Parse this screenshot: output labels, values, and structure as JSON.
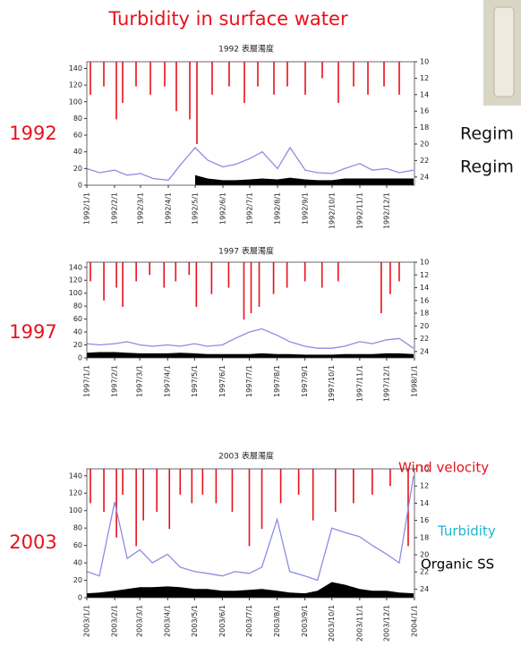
{
  "slide": {
    "title": "Turbidity in surface water",
    "years": [
      "1992",
      "1997",
      "2003"
    ],
    "side_text": [
      "Regim",
      "Regim"
    ]
  },
  "chart_data": [
    {
      "type": "line",
      "title": "1992 表層濁度",
      "xlim": [
        "1992/1/1",
        "1993/1/1"
      ],
      "xticks": [
        "1992/1/1",
        "1992/2/1",
        "1992/3/1",
        "1992/4/1",
        "1992/5/1",
        "1992/6/1",
        "1992/7/1",
        "1992/8/1",
        "1992/9/1",
        "1992/10/1",
        "1992/11/1",
        "1992/12/1"
      ],
      "ylim": [
        0,
        148
      ],
      "yticks": [
        0,
        20,
        40,
        60,
        80,
        100,
        120,
        140
      ],
      "y2lim": [
        25,
        10
      ],
      "y2ticks": [
        10,
        12,
        14,
        16,
        18,
        20,
        22,
        24
      ],
      "x": [
        "1992/1/1",
        "1992/1/15",
        "1992/2/1",
        "1992/2/15",
        "1992/3/1",
        "1992/3/15",
        "1992/4/1",
        "1992/4/15",
        "1992/5/1",
        "1992/5/15",
        "1992/6/1",
        "1992/6/15",
        "1992/7/1",
        "1992/7/15",
        "1992/8/1",
        "1992/8/15",
        "1992/9/1",
        "1992/9/15",
        "1992/10/1",
        "1992/10/15",
        "1992/11/1",
        "1992/11/15",
        "1992/12/1",
        "1992/12/15",
        "1992/12/31"
      ],
      "series": [
        {
          "type": "bar",
          "axis": "y2",
          "color": "#e8101c",
          "x": [
            "1992/1/5",
            "1992/1/20",
            "1992/2/3",
            "1992/2/10",
            "1992/2/25",
            "1992/3/12",
            "1992/3/28",
            "1992/4/10",
            "1992/4/25",
            "1992/5/3",
            "1992/5/20",
            "1992/6/8",
            "1992/6/25",
            "1992/7/10",
            "1992/7/28",
            "1992/8/12",
            "1992/9/1",
            "1992/9/20",
            "1992/10/8",
            "1992/10/25",
            "1992/11/10",
            "1992/11/28",
            "1992/12/15"
          ],
          "values": [
            14,
            13,
            17,
            15,
            13,
            14,
            13,
            16,
            17,
            20,
            14,
            13,
            15,
            13,
            14,
            13,
            14,
            12,
            15,
            13,
            14,
            13,
            14
          ]
        },
        {
          "color": "#8c8ce6",
          "values": [
            20,
            15,
            18,
            12,
            14,
            8,
            6,
            25,
            45,
            30,
            22,
            25,
            32,
            40,
            20,
            45,
            18,
            15,
            14,
            20,
            26,
            18,
            20,
            15,
            18
          ]
        },
        {
          "type": "area",
          "color": "#000000",
          "values": [
            null,
            null,
            null,
            null,
            null,
            null,
            null,
            null,
            12,
            8,
            6,
            6,
            7,
            8,
            7,
            9,
            7,
            6,
            6,
            8,
            8,
            8,
            8,
            8,
            8
          ]
        }
      ]
    },
    {
      "type": "line",
      "title": "1997 表層濁度",
      "xlim": [
        "1997/1/1",
        "1998/1/1"
      ],
      "xticks": [
        "1997/1/1",
        "1997/2/1",
        "1997/3/1",
        "1997/4/1",
        "1997/5/1",
        "1997/6/1",
        "1997/7/1",
        "1997/8/1",
        "1997/9/1",
        "1997/10/1",
        "1997/11/1",
        "1997/12/1",
        "1998/1/1"
      ],
      "ylim": [
        0,
        148
      ],
      "yticks": [
        0,
        20,
        40,
        60,
        80,
        100,
        120,
        140
      ],
      "y2lim": [
        25,
        10
      ],
      "y2ticks": [
        10,
        12,
        14,
        16,
        18,
        20,
        22,
        24
      ],
      "x": [
        "1997/1/1",
        "1997/1/15",
        "1997/2/1",
        "1997/2/15",
        "1997/3/1",
        "1997/3/15",
        "1997/4/1",
        "1997/4/15",
        "1997/5/1",
        "1997/5/15",
        "1997/6/1",
        "1997/6/15",
        "1997/7/1",
        "1997/7/15",
        "1997/8/1",
        "1997/8/15",
        "1997/9/1",
        "1997/9/15",
        "1997/10/1",
        "1997/10/15",
        "1997/11/1",
        "1997/11/15",
        "1997/12/1",
        "1997/12/15",
        "1997/12/31"
      ],
      "series": [
        {
          "type": "bar",
          "axis": "y2",
          "color": "#e8101c",
          "x": [
            "1997/1/5",
            "1997/1/20",
            "1997/2/3",
            "1997/2/10",
            "1997/2/25",
            "1997/3/12",
            "1997/3/28",
            "1997/4/10",
            "1997/4/25",
            "1997/5/3",
            "1997/5/20",
            "1997/6/8",
            "1997/6/25",
            "1997/7/3",
            "1997/7/12",
            "1997/7/28",
            "1997/8/12",
            "1997/9/1",
            "1997/9/20",
            "1997/10/8",
            "1997/11/25",
            "1997/12/5",
            "1997/12/15"
          ],
          "values": [
            13,
            16,
            14,
            17,
            13,
            12,
            14,
            13,
            12,
            17,
            15,
            14,
            19,
            18,
            17,
            15,
            14,
            13,
            14,
            13,
            18,
            15,
            13
          ]
        },
        {
          "color": "#8c8ce6",
          "values": [
            22,
            20,
            22,
            25,
            20,
            18,
            20,
            18,
            22,
            18,
            20,
            30,
            40,
            45,
            35,
            25,
            18,
            15,
            15,
            18,
            25,
            22,
            28,
            30,
            15
          ]
        },
        {
          "type": "area",
          "color": "#000000",
          "values": [
            8,
            9,
            9,
            8,
            7,
            7,
            7,
            8,
            7,
            6,
            6,
            6,
            6,
            7,
            6,
            6,
            5,
            5,
            5,
            6,
            6,
            6,
            7,
            7,
            6
          ]
        }
      ]
    },
    {
      "type": "line",
      "title": "2003 表層濁度",
      "xlim": [
        "2003/1/1",
        "2004/1/1"
      ],
      "xticks": [
        "2003/1/1",
        "2003/2/1",
        "2003/3/1",
        "2003/4/1",
        "2003/5/1",
        "2003/6/1",
        "2003/7/1",
        "2003/8/1",
        "2003/9/1",
        "2003/10/1",
        "2003/11/1",
        "2003/12/1",
        "2004/1/1"
      ],
      "ylim": [
        0,
        148
      ],
      "yticks": [
        0,
        20,
        40,
        60,
        80,
        100,
        120,
        140
      ],
      "y2lim": [
        25,
        10
      ],
      "y2ticks": [
        10,
        12,
        14,
        16,
        18,
        20,
        22,
        24
      ],
      "x": [
        "2003/1/1",
        "2003/1/15",
        "2003/2/1",
        "2003/2/15",
        "2003/3/1",
        "2003/3/15",
        "2003/4/1",
        "2003/4/15",
        "2003/5/1",
        "2003/5/15",
        "2003/6/1",
        "2003/6/15",
        "2003/7/1",
        "2003/7/15",
        "2003/8/1",
        "2003/8/15",
        "2003/9/1",
        "2003/9/15",
        "2003/10/1",
        "2003/10/15",
        "2003/11/1",
        "2003/11/15",
        "2003/12/1",
        "2003/12/15",
        "2003/12/31"
      ],
      "series": [
        {
          "name": "Wind velocity",
          "label_color": "#e8101c",
          "type": "bar",
          "axis": "y2",
          "color": "#e8101c",
          "x": [
            "2003/1/5",
            "2003/1/20",
            "2003/2/3",
            "2003/2/10",
            "2003/2/25",
            "2003/3/5",
            "2003/3/20",
            "2003/4/3",
            "2003/4/15",
            "2003/4/28",
            "2003/5/10",
            "2003/5/25",
            "2003/6/12",
            "2003/7/1",
            "2003/7/15",
            "2003/8/5",
            "2003/8/25",
            "2003/9/10",
            "2003/10/5",
            "2003/10/25",
            "2003/11/15",
            "2003/12/5",
            "2003/12/25"
          ],
          "values": [
            14,
            15,
            18,
            13,
            19,
            16,
            15,
            17,
            13,
            14,
            13,
            14,
            15,
            19,
            17,
            14,
            13,
            16,
            15,
            14,
            13,
            12,
            19
          ]
        },
        {
          "name": "Turbidity",
          "label_color": "#1eb4d2",
          "color": "#8c8ce6",
          "values": [
            30,
            25,
            110,
            45,
            55,
            40,
            50,
            35,
            30,
            28,
            25,
            30,
            28,
            35,
            90,
            30,
            25,
            20,
            80,
            75,
            70,
            60,
            50,
            40,
            140
          ]
        },
        {
          "name": "Organic SS",
          "label_color": "#000000",
          "type": "area",
          "color": "#000000",
          "values": [
            5,
            6,
            8,
            10,
            12,
            12,
            13,
            12,
            10,
            10,
            8,
            8,
            9,
            10,
            8,
            6,
            5,
            8,
            18,
            15,
            10,
            8,
            8,
            6,
            5
          ]
        }
      ]
    }
  ]
}
